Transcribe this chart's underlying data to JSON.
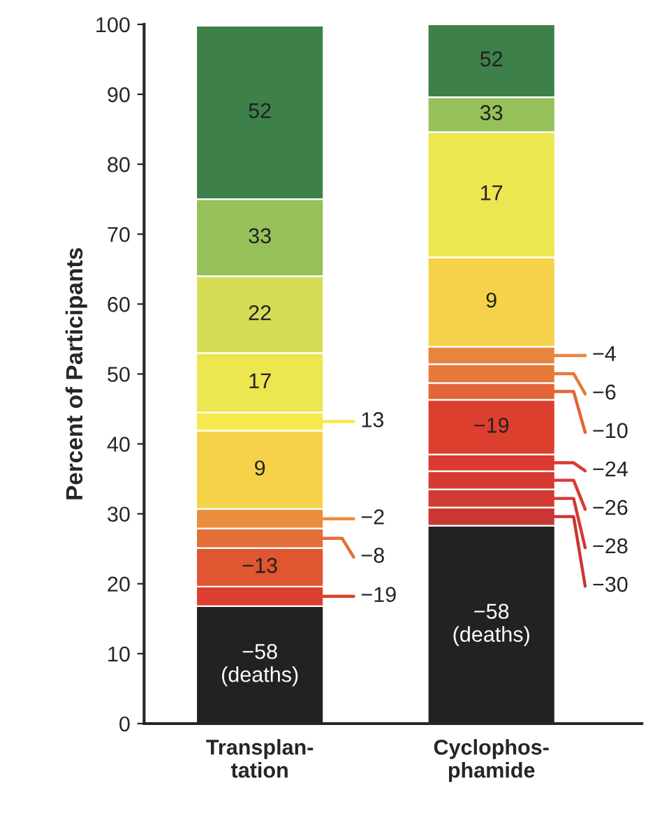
{
  "chart_data": {
    "type": "bar",
    "stacked": true,
    "ylabel": "Percent of Participants",
    "categories": [
      "Transplan-\ntation",
      "Cyclophos-\nphamide"
    ],
    "ylim": [
      0,
      100
    ],
    "yticks": [
      0,
      10,
      20,
      30,
      40,
      50,
      60,
      70,
      80,
      90,
      100
    ],
    "grid": false,
    "legend": "right",
    "series": [
      {
        "name": "−58\n(deaths)",
        "color": "#222222",
        "values": [
          16.8,
          28.3
        ]
      },
      {
        "name": "−30",
        "color": "#c93634",
        "values": [
          null,
          2.6
        ]
      },
      {
        "name": "−28",
        "color": "#d23a34",
        "values": [
          null,
          2.6
        ]
      },
      {
        "name": "−26",
        "color": "#d73a32",
        "values": [
          null,
          2.6
        ]
      },
      {
        "name": "−24",
        "color": "#db3a30",
        "values": [
          null,
          2.4
        ]
      },
      {
        "name": "−19",
        "color": "#dd3f2f",
        "values": [
          2.8,
          7.8
        ]
      },
      {
        "name": "−13",
        "color": "#e05631",
        "values": [
          5.5,
          null
        ]
      },
      {
        "name": "−10",
        "color": "#e36436",
        "values": [
          null,
          2.4
        ]
      },
      {
        "name": "−8",
        "color": "#e46f39",
        "values": [
          2.8,
          null
        ]
      },
      {
        "name": "−6",
        "color": "#e77a3a",
        "values": [
          null,
          2.7
        ]
      },
      {
        "name": "−4",
        "color": "#e8843d",
        "values": [
          null,
          2.5
        ]
      },
      {
        "name": "−2",
        "color": "#eb8d3f",
        "values": [
          2.8,
          null
        ]
      },
      {
        "name": "9",
        "color": "#f5d24a",
        "values": [
          11.2,
          12.8
        ]
      },
      {
        "name": "13",
        "color": "#f5e94e",
        "values": [
          2.6,
          null
        ]
      },
      {
        "name": "17",
        "color": "#ece650",
        "values": [
          8.5,
          17.9
        ]
      },
      {
        "name": "22",
        "color": "#d6dc55",
        "values": [
          11.0,
          null
        ]
      },
      {
        "name": "33",
        "color": "#95c05a",
        "values": [
          11.0,
          5.0
        ]
      },
      {
        "name": "52",
        "color": "#3d8049",
        "values": [
          24.8,
          10.4
        ]
      }
    ]
  }
}
